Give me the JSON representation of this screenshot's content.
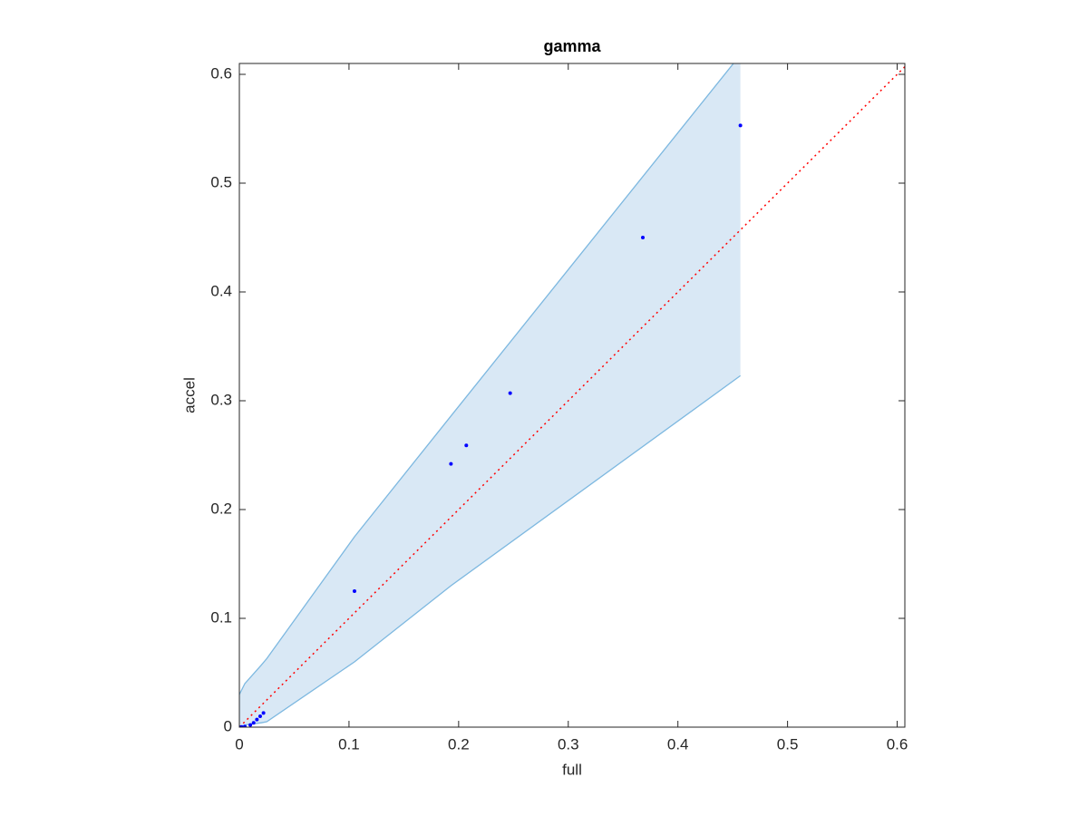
{
  "chart_data": {
    "type": "scatter",
    "title": "gamma",
    "xlabel": "full",
    "ylabel": "accel",
    "xlim": [
      0,
      0.607
    ],
    "ylim": [
      0,
      0.61
    ],
    "xticks": [
      0,
      0.1,
      0.2,
      0.3,
      0.4,
      0.5,
      0.6
    ],
    "yticks": [
      0,
      0.1,
      0.2,
      0.3,
      0.4,
      0.5,
      0.6
    ],
    "series": [
      {
        "color": "#0000ff",
        "x": [
          0,
          0.002,
          0.005,
          0.01,
          0.013,
          0.016,
          0.019,
          0.022,
          0.105,
          0.193,
          0.207,
          0.247,
          0.368,
          0.457
        ],
        "values": [
          0,
          0.0002,
          0.0005,
          0.002,
          0.004,
          0.007,
          0.01,
          0.013,
          0.125,
          0.242,
          0.259,
          0.307,
          0.45,
          0.553
        ]
      }
    ],
    "band": {
      "color": "#7db8e0",
      "fill": "#d9e8f5",
      "x": [
        0,
        0.005,
        0.02,
        0.025,
        0.105,
        0.193,
        0.457
      ],
      "upper": [
        0.03,
        0.04,
        0.057,
        0.063,
        0.175,
        0.286,
        0.618
      ],
      "lower": [
        0,
        0.002,
        0.004,
        0.005,
        0.06,
        0.13,
        0.323
      ]
    },
    "reference": {
      "color": "#ff0000",
      "x": [
        0,
        0.607
      ],
      "values": [
        0,
        0.607
      ]
    }
  }
}
